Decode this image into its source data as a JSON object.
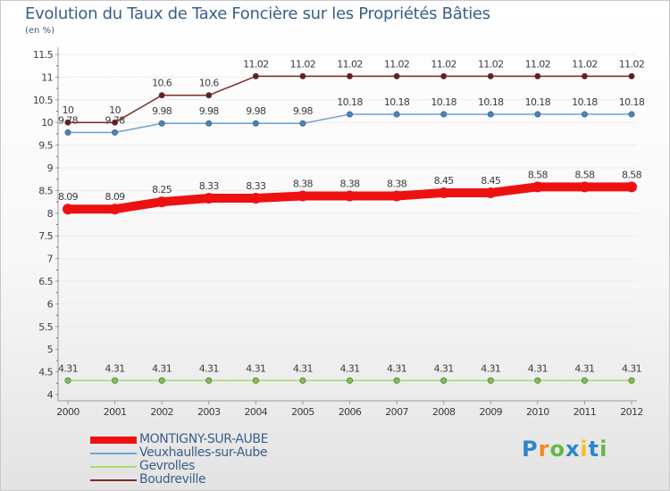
{
  "chart_data": {
    "type": "line",
    "title": "Evolution du Taux de Taxe Foncière sur les Propriétés Bâties",
    "subtitle": "(en %)",
    "xlabel": "",
    "ylabel": "(en %)",
    "ylim": [
      4,
      11.5
    ],
    "x": [
      "2000",
      "2001",
      "2002",
      "2003",
      "2004",
      "2005",
      "2006",
      "2007",
      "2008",
      "2009",
      "2010",
      "2011",
      "2012"
    ],
    "y_ticks": [
      "4",
      "4.5",
      "5",
      "5.5",
      "6",
      "6.5",
      "7",
      "7.5",
      "8",
      "8.5",
      "9",
      "9.5",
      "10",
      "10.5",
      "11",
      "11.5"
    ],
    "series": [
      {
        "name": "MONTIGNY-SUR-AUBE",
        "color": "#ee1111",
        "point_color": "#ee1111",
        "values": [
          8.09,
          8.09,
          8.25,
          8.33,
          8.33,
          8.38,
          8.38,
          8.38,
          8.45,
          8.45,
          8.58,
          8.58,
          8.58
        ],
        "labels": [
          "8.09",
          "8.09",
          "8.25",
          "8.33",
          "8.33",
          "8.38",
          "8.38",
          "8.38",
          "8.45",
          "8.45",
          "8.58",
          "8.58",
          "8.58"
        ]
      },
      {
        "name": "Veuxhaulles-sur-Aube",
        "color": "#6fa3d2",
        "point_color": "#3f86c6",
        "values": [
          9.78,
          9.78,
          9.98,
          9.98,
          9.98,
          9.98,
          10.18,
          10.18,
          10.18,
          10.18,
          10.18,
          10.18,
          10.18
        ],
        "labels": [
          "9.78",
          "9.78",
          "9.98",
          "9.98",
          "9.98",
          "9.98",
          "10.18",
          "10.18",
          "10.18",
          "10.18",
          "10.18",
          "10.18",
          "10.18"
        ]
      },
      {
        "name": "Gevrolles",
        "color": "#a5dd6e",
        "point_color": "#7cc63d",
        "values": [
          4.31,
          4.31,
          4.31,
          4.31,
          4.31,
          4.31,
          4.31,
          4.31,
          4.31,
          4.31,
          4.31,
          4.31,
          4.31
        ],
        "labels": [
          "4.31",
          "4.31",
          "4.31",
          "4.31",
          "4.31",
          "4.31",
          "4.31",
          "4.31",
          "4.31",
          "4.31",
          "4.31",
          "4.31",
          "4.31"
        ]
      },
      {
        "name": "Boudreville",
        "color": "#7b2b2b",
        "point_color": "#6b1b1b",
        "values": [
          10,
          10,
          10.6,
          10.6,
          11.02,
          11.02,
          11.02,
          11.02,
          11.02,
          11.02,
          11.02,
          11.02,
          11.02
        ],
        "labels": [
          "10",
          "10",
          "10.6",
          "10.6",
          "11.02",
          "11.02",
          "11.02",
          "11.02",
          "11.02",
          "11.02",
          "11.02",
          "11.02",
          "11.02"
        ]
      }
    ]
  },
  "legend": {
    "items": [
      "MONTIGNY-SUR-AUBE",
      "Veuxhaulles-sur-Aube",
      "Gevrolles",
      "Boudreville"
    ]
  },
  "brand": {
    "letters": [
      "P",
      "r",
      "o",
      "x",
      "i",
      "t",
      "i"
    ],
    "colors": [
      "#2e86c9",
      "#f28c1e",
      "#62b946",
      "#2e86c9",
      "#f2c21e",
      "#2e86c9",
      "#62b946"
    ]
  }
}
